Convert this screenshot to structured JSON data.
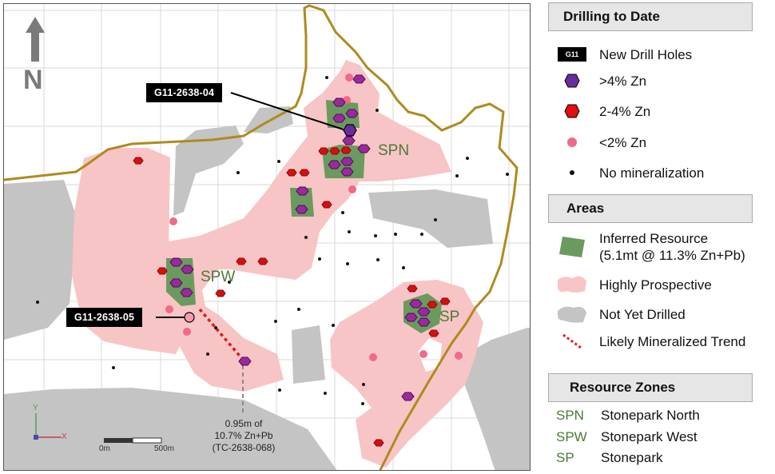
{
  "map": {
    "north_letter": "N",
    "callouts": [
      {
        "id": "g11-2638-04",
        "label": "G11-2638-04"
      },
      {
        "id": "g11-2638-05",
        "label": "G11-2638-05"
      }
    ],
    "zone_labels": {
      "spn": "SPN",
      "spw": "SPW",
      "sp": "SP"
    },
    "intercept_note": [
      "0.95m of",
      "10.7% Zn+Pb",
      "(TC-2638-068)"
    ],
    "scale": {
      "start": "0m",
      "end": "500m"
    },
    "axis": {
      "x": "X",
      "y": "Y"
    }
  },
  "legend": {
    "drilling": {
      "title": "Drilling to Date",
      "items": [
        {
          "symbol": "new-drill-hole",
          "badge": "G11",
          "label": "New Drill Holes"
        },
        {
          "symbol": "purple-hexagon",
          "label": ">4% Zn"
        },
        {
          "symbol": "red-hexagon",
          "label": "2-4% Zn"
        },
        {
          "symbol": "pink-dot",
          "label": "<2% Zn"
        },
        {
          "symbol": "black-dot",
          "label": "No mineralization"
        }
      ]
    },
    "areas": {
      "title": "Areas",
      "items": [
        {
          "symbol": "green-patch",
          "label_line1": "Inferred Resource",
          "label_line2": "(5.1mt @ 11.3% Zn+Pb)"
        },
        {
          "symbol": "pink-patch",
          "label": "Highly Prospective"
        },
        {
          "symbol": "grey-patch",
          "label": "Not Yet Drilled"
        },
        {
          "symbol": "red-dotted-line",
          "label": "Likely Mineralized Trend"
        }
      ]
    },
    "zones": {
      "title": "Resource Zones",
      "items": [
        {
          "code": "SPN",
          "name": "Stonepark North"
        },
        {
          "code": "SPW",
          "name": "Stonepark West"
        },
        {
          "code": "SP",
          "name": "Stonepark"
        }
      ]
    }
  },
  "colors": {
    "prospective_pink": "#f7c5c5",
    "not_drilled_grey": "#c4c4c4",
    "resource_green": "#6a9a5e",
    "boundary_gold": "#b08a1e",
    "purple_zn": "#7a2a9a",
    "red_zn": "#d41010",
    "pink_zn": "#f06a8a",
    "zone_text_green": "#4a7a3a"
  }
}
